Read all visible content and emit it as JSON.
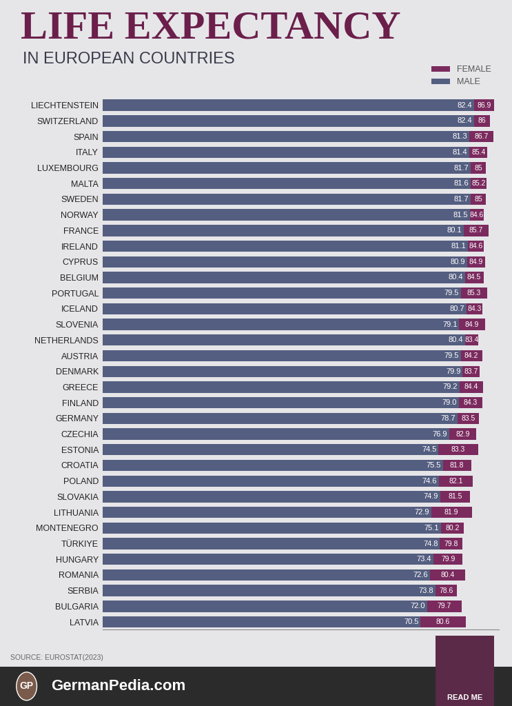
{
  "chart_data": {
    "type": "bar",
    "orientation": "horizontal",
    "title": "LIFE EXPECTANCY",
    "subtitle": "IN EUROPEAN COUNTRIES",
    "source": "SOURCE: EUROSTAT(2023)",
    "annotations": [
      "GP",
      "GermanPedia.com",
      "READ ME"
    ],
    "categories": [
      "LIECHTENSTEIN",
      "SWITZERLAND",
      "SPAIN",
      "ITALY",
      "LUXEMBOURG",
      "MALTA",
      "SWEDEN",
      "NORWAY",
      "FRANCE",
      "IRELAND",
      "CYPRUS",
      "BELGIUM",
      "PORTUGAL",
      "ICELAND",
      "SLOVENIA",
      "NETHERLANDS",
      "AUSTRIA",
      "DENMARK",
      "GREECE",
      "FINLAND",
      "GERMANY",
      "CZECHIA",
      "ESTONIA",
      "CROATIA",
      "POLAND",
      "SLOVAKIA",
      "LITHUANIA",
      "MONTENEGRO",
      "TÜRKIYE",
      "HUNGARY",
      "ROMANIA",
      "SERBIA",
      "BULGARIA",
      "LATVIA"
    ],
    "series": [
      {
        "name": "FEMALE",
        "color": "#7b2a5e",
        "values": [
          86.9,
          86,
          86.7,
          85.4,
          85,
          85.2,
          85,
          84.6,
          85.7,
          84.6,
          84.9,
          84.5,
          85.3,
          84.3,
          84.9,
          83.4,
          84.2,
          83.7,
          84.4,
          84.3,
          83.5,
          82.9,
          83.3,
          81.8,
          82.1,
          81.5,
          81.9,
          80.2,
          79.8,
          79.9,
          80.4,
          78.6,
          79.7,
          80.6
        ]
      },
      {
        "name": "MALE",
        "color": "#545e80",
        "values": [
          82.4,
          82.4,
          81.3,
          81.4,
          81.7,
          81.6,
          81.7,
          81.5,
          80.1,
          81.1,
          80.9,
          80.4,
          79.5,
          80.7,
          79.1,
          80.4,
          79.5,
          79.9,
          79.2,
          79.0,
          78.7,
          76.9,
          74.5,
          75.5,
          74.6,
          74.9,
          72.9,
          75.1,
          74.8,
          73.4,
          72.6,
          73.8,
          72.0,
          70.5
        ]
      }
    ],
    "xlim": [
      0,
      88
    ],
    "legend": "upper right",
    "data_labels": true,
    "tick_labels": "y",
    "grid": false
  }
}
